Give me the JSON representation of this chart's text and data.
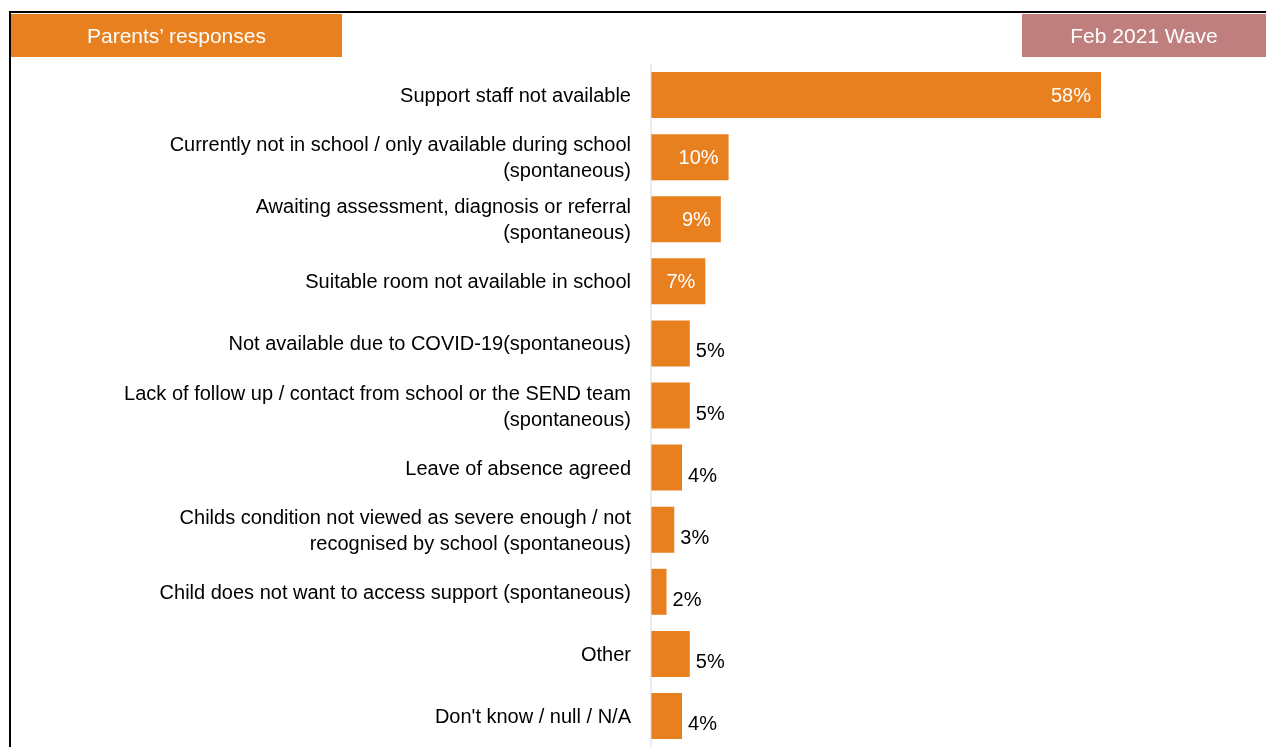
{
  "chart_data": {
    "type": "bar",
    "orientation": "horizontal",
    "title": "Parents’ responses",
    "subtitle": "Feb 2021 Wave",
    "categories": [
      "Support staff not available",
      "Currently not in school / only available during school\n(spontaneous)",
      "Awaiting assessment, diagnosis or referral\n(spontaneous)",
      "Suitable room not available in school",
      "Not available due to COVID-19(spontaneous)",
      "Lack of follow up / contact from school or the SEND team\n(spontaneous)",
      "Leave of absence agreed",
      "Childs condition not viewed as severe enough / not\nrecognised by school (spontaneous)",
      "Child does not want to access support (spontaneous)",
      "Other",
      "Don't know / null / N/A"
    ],
    "values": [
      58,
      10,
      9,
      7,
      5,
      5,
      4,
      3,
      2,
      5,
      4
    ],
    "value_labels": [
      "58%",
      "10%",
      "9%",
      "7%",
      "5%",
      "5%",
      "4%",
      "3%",
      "2%",
      "5%",
      "4%"
    ],
    "color": "#e8801f",
    "tick_labels": "y"
  }
}
